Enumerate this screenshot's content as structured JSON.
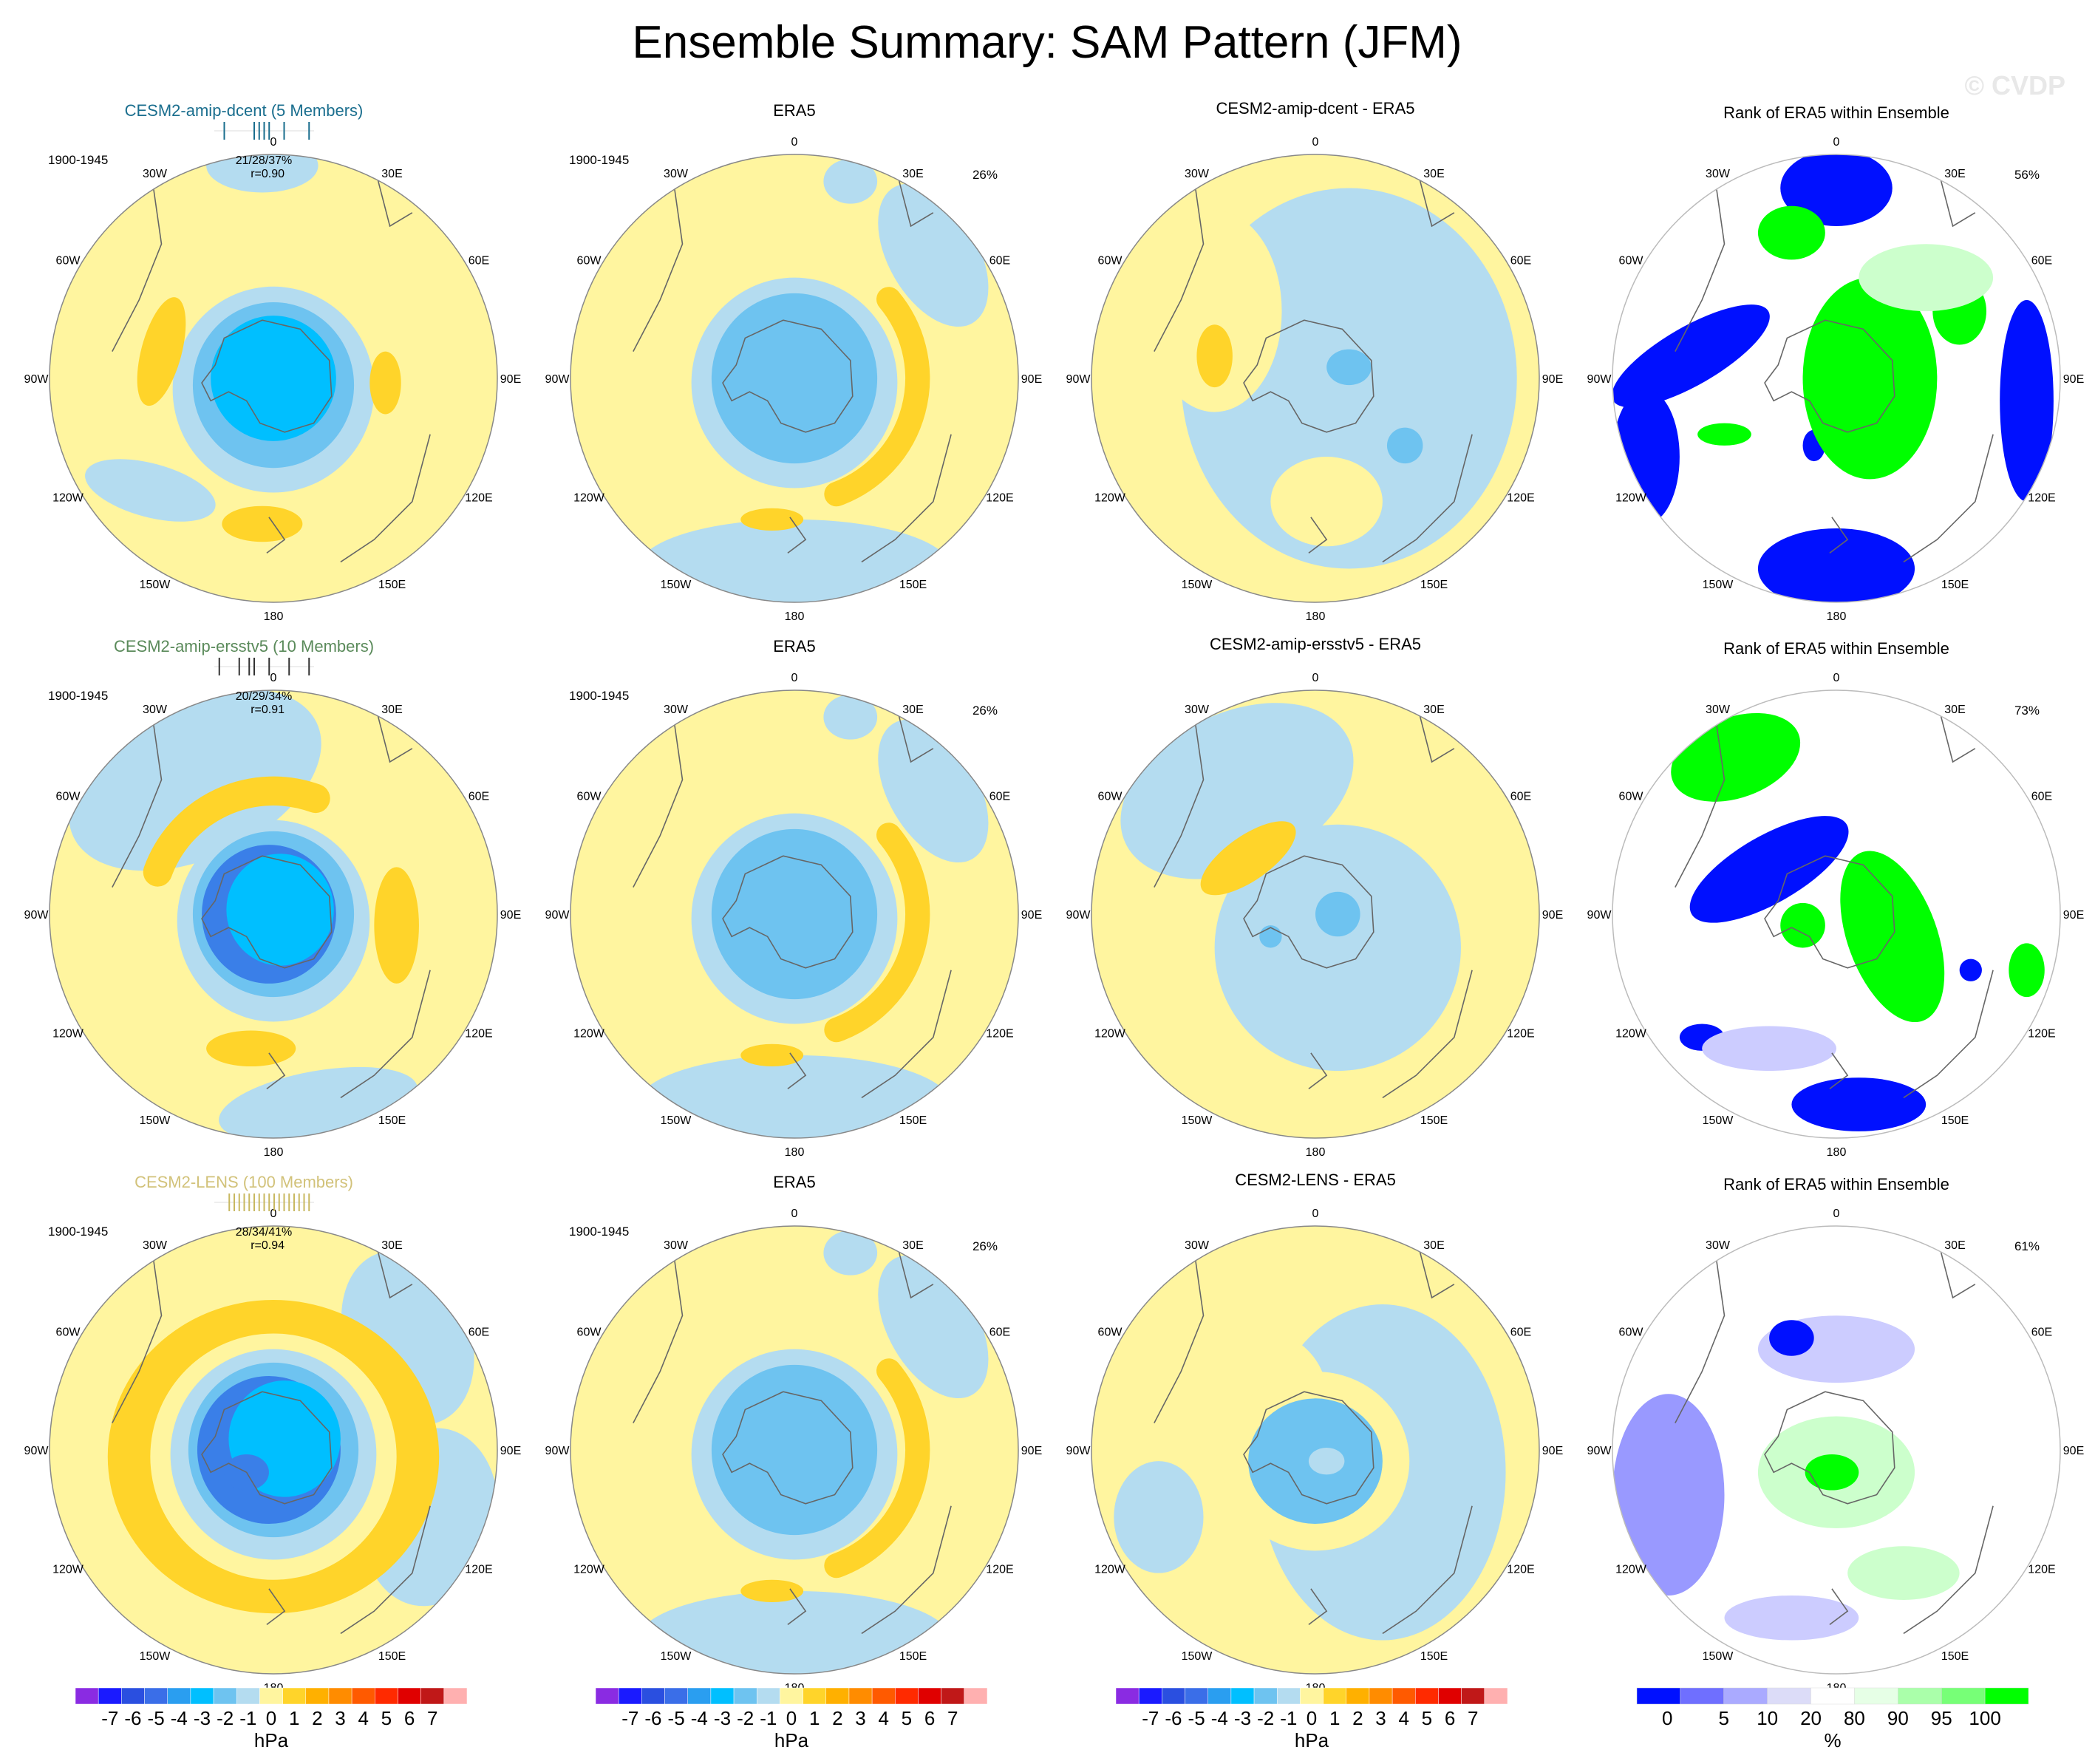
{
  "page": {
    "title": "Ensemble Summary: SAM Pattern (JFM)",
    "watermark": "© CVDP"
  },
  "longitude_labels": [
    "0",
    "30E",
    "60E",
    "90E",
    "120E",
    "150E",
    "180",
    "150W",
    "120W",
    "90W",
    "60W",
    "30W"
  ],
  "colors": {
    "neg1": "#b4dcf0",
    "neg2": "#6ec3f0",
    "neg3": "#00bfff",
    "neg4": "#3a7fe8",
    "pos1": "#fff59f",
    "pos2": "#ffd42a",
    "rank_blue": "#0010ff",
    "rank_green": "#00ff00",
    "rank_light_green": "#ccffcc",
    "rank_lavender": "#ccccff",
    "rank_lightblue": "#9999ff"
  },
  "rows": [
    {
      "model": {
        "title": "CESM2-amip-dcent (5 Members)",
        "title_color": "#1a6e8e",
        "period": "1900-1945",
        "stats": "21/28/37%",
        "corr": "r=0.90",
        "stat_bar_color": "#1a6e8e",
        "ticks": [
          0.1,
          0.4,
          0.45,
          0.5,
          0.55,
          0.7,
          0.95
        ]
      },
      "obs": {
        "title": "ERA5",
        "period": "1900-1945",
        "pct": "26%"
      },
      "diff": {
        "title": "CESM2-amip-dcent - ERA5"
      },
      "rank": {
        "title": "Rank of ERA5 within Ensemble",
        "pct": "56%"
      }
    },
    {
      "model": {
        "title": "CESM2-amip-ersstv5 (10 Members)",
        "title_color": "#5a8a5a",
        "period": "1900-1945",
        "stats": "20/29/34%",
        "corr": "r=0.91",
        "stat_bar_color": "#333333",
        "ticks": [
          0.05,
          0.25,
          0.35,
          0.4,
          0.55,
          0.75,
          0.95
        ]
      },
      "obs": {
        "title": "ERA5",
        "period": "1900-1945",
        "pct": "26%"
      },
      "diff": {
        "title": "CESM2-amip-ersstv5 - ERA5"
      },
      "rank": {
        "title": "Rank of ERA5 within Ensemble",
        "pct": "73%"
      }
    },
    {
      "model": {
        "title": "CESM2-LENS (100 Members)",
        "title_color": "#d2c27a",
        "period": "1900-1945",
        "stats": "28/34/41%",
        "corr": "r=0.94",
        "stat_bar_color": "#c8b860",
        "ticks": [
          0.15,
          0.2,
          0.25,
          0.3,
          0.35,
          0.4,
          0.45,
          0.5,
          0.55,
          0.6,
          0.65,
          0.7,
          0.75,
          0.8,
          0.85,
          0.9,
          0.95
        ]
      },
      "obs": {
        "title": "ERA5",
        "period": "1900-1945",
        "pct": "26%"
      },
      "diff": {
        "title": "CESM2-LENS - ERA5"
      },
      "rank": {
        "title": "Rank of ERA5 within Ensemble",
        "pct": "61%"
      }
    }
  ],
  "colorbars": {
    "hpa": {
      "unit": "hPa",
      "labels": [
        "-7",
        "-6",
        "-5",
        "-4",
        "-3",
        "-2",
        "-1",
        "0",
        "1",
        "2",
        "3",
        "4",
        "5",
        "6",
        "7"
      ],
      "colors": [
        "#8a2be2",
        "#1a1aff",
        "#2a4fe0",
        "#3a6ee8",
        "#2a9ef0",
        "#00bfff",
        "#6ec3f0",
        "#b4dcf0",
        "#fff59f",
        "#ffd42a",
        "#ffb000",
        "#ff8c00",
        "#ff5a00",
        "#ff2a00",
        "#e00000",
        "#c01818",
        "#ffb0b0"
      ]
    },
    "pct": {
      "unit": "%",
      "labels": [
        "0",
        "5",
        "10",
        "20",
        "80",
        "90",
        "95",
        "100"
      ],
      "colors": [
        "#0010ff",
        "#6f6fff",
        "#aaaaff",
        "#dcdcf8",
        "#ffffff",
        "#e6ffe6",
        "#aaffaa",
        "#77ff77",
        "#00ff00"
      ]
    }
  },
  "chart_data": [
    {
      "type": "heatmap",
      "title": "CESM2-amip-dcent (5 Members)",
      "subtitle": "1900-1945",
      "annotation": "21/28/37% r=0.90",
      "projection": "south polar stereographic",
      "units": "hPa"
    },
    {
      "type": "heatmap",
      "title": "ERA5",
      "subtitle": "1900-1945",
      "annotation": "26%",
      "units": "hPa"
    },
    {
      "type": "heatmap",
      "title": "CESM2-amip-dcent - ERA5",
      "units": "hPa"
    },
    {
      "type": "heatmap",
      "title": "Rank of ERA5 within Ensemble",
      "annotation": "56%",
      "units": "%"
    },
    {
      "type": "heatmap",
      "title": "CESM2-amip-ersstv5 (10 Members)",
      "subtitle": "1900-1945",
      "annotation": "20/29/34% r=0.91",
      "units": "hPa"
    },
    {
      "type": "heatmap",
      "title": "ERA5",
      "subtitle": "1900-1945",
      "annotation": "26%",
      "units": "hPa"
    },
    {
      "type": "heatmap",
      "title": "CESM2-amip-ersstv5 - ERA5",
      "units": "hPa"
    },
    {
      "type": "heatmap",
      "title": "Rank of ERA5 within Ensemble",
      "annotation": "73%",
      "units": "%"
    },
    {
      "type": "heatmap",
      "title": "CESM2-LENS (100 Members)",
      "subtitle": "1900-1945",
      "annotation": "28/34/41% r=0.94",
      "units": "hPa"
    },
    {
      "type": "heatmap",
      "title": "ERA5",
      "subtitle": "1900-1945",
      "annotation": "26%",
      "units": "hPa"
    },
    {
      "type": "heatmap",
      "title": "CESM2-LENS - ERA5",
      "units": "hPa"
    },
    {
      "type": "heatmap",
      "title": "Rank of ERA5 within Ensemble",
      "annotation": "61%",
      "units": "%"
    }
  ]
}
